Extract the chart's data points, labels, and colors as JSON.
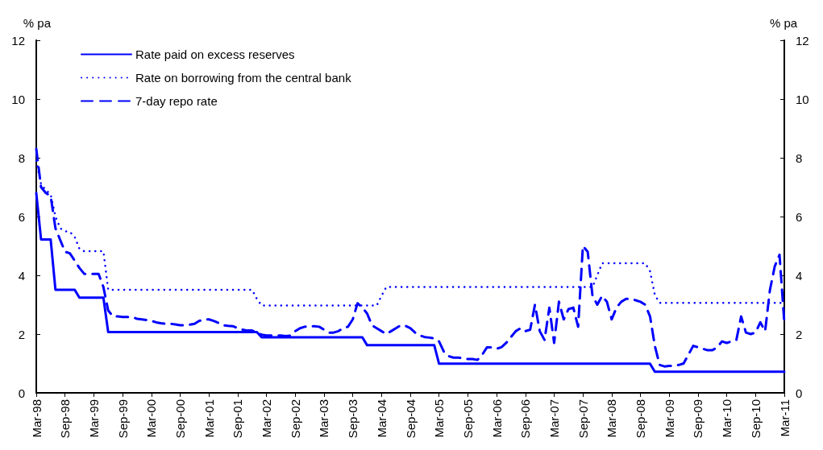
{
  "chart_data": {
    "type": "line",
    "ylabel": "% pa",
    "y2label": "% pa",
    "ylim": [
      0,
      12
    ],
    "yticks": [
      0,
      2,
      4,
      6,
      8,
      10,
      12
    ],
    "y2lim": [
      0,
      12
    ],
    "y2ticks": [
      0,
      2,
      4,
      6,
      8,
      10,
      12
    ],
    "legend": "top left",
    "grid": false,
    "categories": [
      "Mar-98",
      null,
      null,
      null,
      null,
      null,
      "Sep-98",
      null,
      null,
      null,
      null,
      null,
      "Mar-99",
      null,
      null,
      null,
      null,
      null,
      "Sep-99",
      null,
      null,
      null,
      null,
      null,
      "Mar-00",
      null,
      null,
      null,
      null,
      null,
      "Sep-00",
      null,
      null,
      null,
      null,
      null,
      "Mar-01",
      null,
      null,
      null,
      null,
      null,
      "Sep-01",
      null,
      null,
      null,
      null,
      null,
      "Mar-02",
      null,
      null,
      null,
      null,
      null,
      "Sep-02",
      null,
      null,
      null,
      null,
      null,
      "Mar-03",
      null,
      null,
      null,
      null,
      null,
      "Sep-03",
      null,
      null,
      null,
      null,
      null,
      "Mar-04",
      null,
      null,
      null,
      null,
      null,
      "Sep-04",
      null,
      null,
      null,
      null,
      null,
      "Mar-05",
      null,
      null,
      null,
      null,
      null,
      "Sep-05",
      null,
      null,
      null,
      null,
      null,
      "Mar-06",
      null,
      null,
      null,
      null,
      null,
      "Sep-06",
      null,
      null,
      null,
      null,
      null,
      "Mar-07",
      null,
      null,
      null,
      null,
      null,
      "Sep-07",
      null,
      null,
      null,
      null,
      null,
      "Mar-08",
      null,
      null,
      null,
      null,
      null,
      "Sep-08",
      null,
      null,
      null,
      null,
      null,
      "Mar-09",
      null,
      null,
      null,
      null,
      null,
      "Sep-09",
      null,
      null,
      null,
      null,
      null,
      "Mar-10",
      null,
      null,
      null,
      null,
      null,
      "Sep-10",
      null,
      null,
      null,
      null,
      null,
      "Mar-11"
    ],
    "series": [
      {
        "name": "Rate paid on excess reserves",
        "color": "#0000ff",
        "line_style": "solid",
        "values": [
          6.8,
          5.22,
          5.22,
          5.22,
          3.51,
          3.51,
          3.51,
          3.51,
          3.51,
          3.24,
          3.24,
          3.24,
          3.24,
          3.24,
          3.24,
          2.07,
          2.07,
          2.07,
          2.07,
          2.07,
          2.07,
          2.07,
          2.07,
          2.07,
          2.07,
          2.07,
          2.07,
          2.07,
          2.07,
          2.07,
          2.07,
          2.07,
          2.07,
          2.07,
          2.07,
          2.07,
          2.07,
          2.07,
          2.07,
          2.07,
          2.07,
          2.07,
          2.07,
          2.07,
          2.07,
          2.07,
          2.07,
          1.89,
          1.89,
          1.89,
          1.89,
          1.89,
          1.89,
          1.89,
          1.89,
          1.89,
          1.89,
          1.89,
          1.89,
          1.89,
          1.89,
          1.89,
          1.89,
          1.89,
          1.89,
          1.89,
          1.89,
          1.89,
          1.89,
          1.62,
          1.62,
          1.62,
          1.62,
          1.62,
          1.62,
          1.62,
          1.62,
          1.62,
          1.62,
          1.62,
          1.62,
          1.62,
          1.62,
          1.62,
          0.99,
          0.99,
          0.99,
          0.99,
          0.99,
          0.99,
          0.99,
          0.99,
          0.99,
          0.99,
          0.99,
          0.99,
          0.99,
          0.99,
          0.99,
          0.99,
          0.99,
          0.99,
          0.99,
          0.99,
          0.99,
          0.99,
          0.99,
          0.99,
          0.99,
          0.99,
          0.99,
          0.99,
          0.99,
          0.99,
          0.99,
          0.99,
          0.99,
          0.99,
          0.99,
          0.99,
          0.99,
          0.99,
          0.99,
          0.99,
          0.99,
          0.99,
          0.99,
          0.99,
          0.99,
          0.72,
          0.72,
          0.72,
          0.72,
          0.72,
          0.72,
          0.72,
          0.72,
          0.72,
          0.72,
          0.72,
          0.72,
          0.72,
          0.72,
          0.72,
          0.72,
          0.72,
          0.72,
          0.72,
          0.72,
          0.72,
          0.72,
          0.72,
          0.72,
          0.72,
          0.72,
          0.72,
          0.72
        ]
      },
      {
        "name": "Rate on borrowing from the central bank",
        "color": "#0000ff",
        "line_style": "dotted",
        "values": [
          7.9,
          7.1,
          6.9,
          6.75,
          6.0,
          5.6,
          5.5,
          5.48,
          5.31,
          4.9,
          4.82,
          4.82,
          4.82,
          4.82,
          4.82,
          3.51,
          3.51,
          3.51,
          3.51,
          3.51,
          3.51,
          3.51,
          3.51,
          3.51,
          3.51,
          3.51,
          3.51,
          3.51,
          3.51,
          3.51,
          3.51,
          3.51,
          3.51,
          3.51,
          3.51,
          3.51,
          3.51,
          3.51,
          3.51,
          3.51,
          3.51,
          3.51,
          3.51,
          3.51,
          3.51,
          3.51,
          3.2,
          2.97,
          2.97,
          2.97,
          2.97,
          2.97,
          2.97,
          2.97,
          2.97,
          2.97,
          2.97,
          2.97,
          2.97,
          2.97,
          2.97,
          2.97,
          2.97,
          2.97,
          2.97,
          2.97,
          2.97,
          2.97,
          2.97,
          2.97,
          2.97,
          2.97,
          3.3,
          3.6,
          3.6,
          3.6,
          3.6,
          3.6,
          3.6,
          3.6,
          3.6,
          3.6,
          3.6,
          3.6,
          3.6,
          3.6,
          3.6,
          3.6,
          3.6,
          3.6,
          3.6,
          3.6,
          3.6,
          3.6,
          3.6,
          3.6,
          3.6,
          3.6,
          3.6,
          3.6,
          3.6,
          3.6,
          3.6,
          3.6,
          3.6,
          3.6,
          3.6,
          3.6,
          3.6,
          3.6,
          3.6,
          3.6,
          3.6,
          3.6,
          3.6,
          3.6,
          3.6,
          4.0,
          4.41,
          4.41,
          4.41,
          4.41,
          4.41,
          4.41,
          4.41,
          4.41,
          4.41,
          4.41,
          4.14,
          3.33,
          3.06,
          3.06,
          3.06,
          3.06,
          3.06,
          3.06,
          3.06,
          3.06,
          3.06,
          3.06,
          3.06,
          3.06,
          3.06,
          3.06,
          3.06,
          3.06,
          3.06,
          3.06,
          3.06,
          3.06,
          3.06,
          3.06,
          3.06,
          3.06,
          3.06,
          3.06,
          3.06
        ]
      },
      {
        "name": "7-day repo rate",
        "color": "#0000ff",
        "line_style": "dashed",
        "values": [
          8.3,
          7.0,
          6.8,
          6.7,
          5.6,
          5.2,
          4.8,
          4.75,
          4.5,
          4.25,
          4.05,
          4.05,
          4.05,
          4.05,
          3.6,
          2.8,
          2.6,
          2.6,
          2.58,
          2.58,
          2.58,
          2.52,
          2.5,
          2.48,
          2.45,
          2.4,
          2.37,
          2.35,
          2.35,
          2.33,
          2.3,
          2.3,
          2.32,
          2.35,
          2.45,
          2.5,
          2.5,
          2.45,
          2.38,
          2.3,
          2.28,
          2.27,
          2.2,
          2.15,
          2.12,
          2.12,
          2.05,
          1.98,
          1.95,
          1.95,
          1.95,
          1.95,
          1.93,
          1.95,
          2.1,
          2.2,
          2.25,
          2.27,
          2.27,
          2.25,
          2.15,
          2.05,
          2.05,
          2.1,
          2.2,
          2.25,
          2.5,
          3.05,
          2.9,
          2.7,
          2.3,
          2.2,
          2.1,
          2.0,
          2.1,
          2.2,
          2.3,
          2.28,
          2.2,
          2.05,
          1.95,
          1.9,
          1.88,
          1.85,
          1.75,
          1.4,
          1.25,
          1.2,
          1.2,
          1.18,
          1.15,
          1.15,
          1.12,
          1.3,
          1.55,
          1.55,
          1.5,
          1.55,
          1.7,
          1.9,
          2.1,
          2.2,
          2.1,
          2.15,
          3.0,
          2.1,
          1.8,
          2.9,
          1.7,
          3.1,
          2.5,
          2.85,
          2.9,
          2.25,
          5.0,
          4.8,
          3.3,
          3.0,
          3.3,
          3.1,
          2.5,
          2.9,
          3.1,
          3.2,
          3.2,
          3.15,
          3.1,
          3.0,
          2.6,
          1.6,
          0.95,
          0.9,
          0.92,
          0.92,
          0.95,
          1.0,
          1.3,
          1.6,
          1.55,
          1.5,
          1.45,
          1.45,
          1.55,
          1.75,
          1.7,
          1.75,
          1.8,
          2.6,
          2.05,
          2.0,
          2.05,
          2.4,
          2.1,
          3.5,
          4.3,
          4.7,
          2.4
        ]
      }
    ]
  }
}
